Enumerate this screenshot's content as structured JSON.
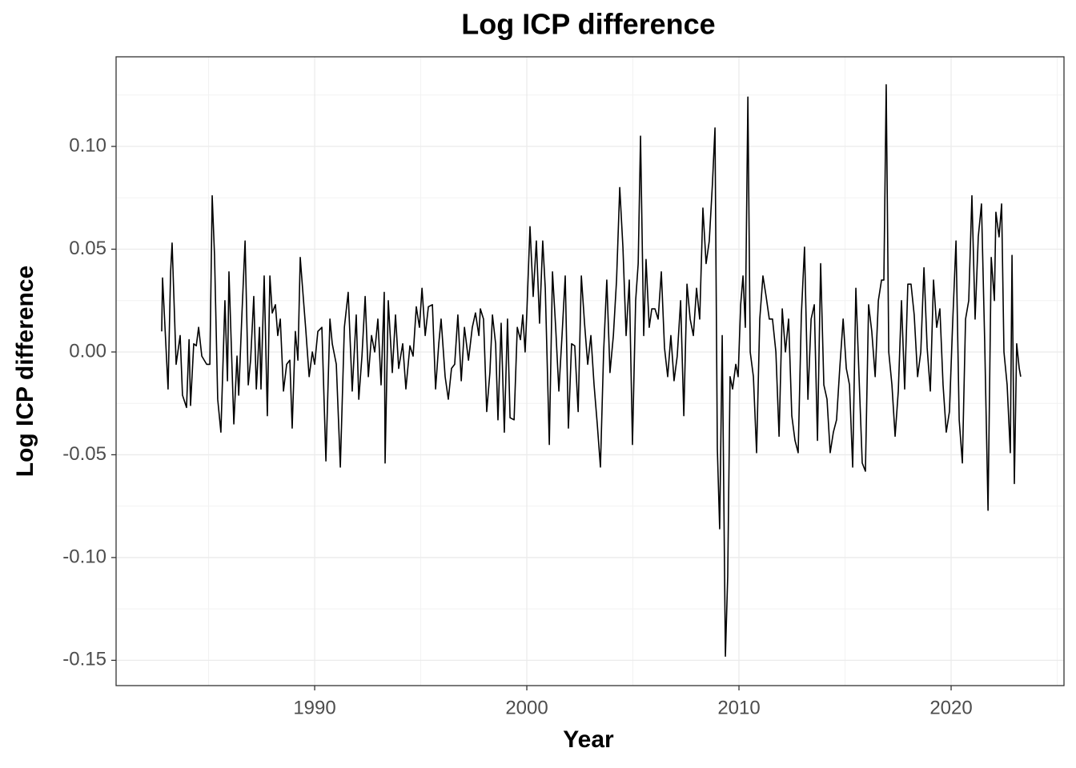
{
  "chart_data": {
    "type": "line",
    "title": "Log ICP difference",
    "x_label": "Year",
    "y_label": "Log ICP difference",
    "xlim": [
      1980.64,
      2025.32
    ],
    "ylim": [
      -0.1623,
      0.1436
    ],
    "xticks": [
      1990,
      2000,
      2010,
      2020
    ],
    "yticks": [
      {
        "value": -0.15,
        "label": "-0.15"
      },
      {
        "value": -0.1,
        "label": "-0.10"
      },
      -0.05,
      {
        "value": 0,
        "label": "0.00"
      },
      0.05,
      {
        "value": 0.1,
        "label": "0.10"
      }
    ],
    "x_minor_ticks": [
      1985,
      1995,
      2005,
      2015,
      2025
    ],
    "y_minor_ticks": [
      -0.125,
      -0.075,
      -0.025,
      0.025,
      0.075,
      0.125
    ],
    "grid": true,
    "x": [
      1982.79,
      1982.83,
      1983.09,
      1983.21,
      1983.28,
      1983.47,
      1983.66,
      1983.77,
      1983.96,
      1984.08,
      1984.15,
      1984.3,
      1984.42,
      1984.53,
      1984.68,
      1984.91,
      1985.06,
      1985.17,
      1985.28,
      1985.43,
      1985.58,
      1985.77,
      1985.89,
      1985.96,
      1986.19,
      1986.34,
      1986.42,
      1986.57,
      1986.72,
      1986.87,
      1986.98,
      1987.13,
      1987.25,
      1987.4,
      1987.47,
      1987.62,
      1987.77,
      1987.89,
      1988.0,
      1988.15,
      1988.26,
      1988.38,
      1988.53,
      1988.68,
      1988.83,
      1988.94,
      1989.09,
      1989.21,
      1989.32,
      1989.43,
      1989.58,
      1989.74,
      1989.89,
      1990.0,
      1990.15,
      1990.34,
      1990.53,
      1990.72,
      1990.83,
      1991.02,
      1991.21,
      1991.4,
      1991.58,
      1991.77,
      1991.96,
      1992.08,
      1992.23,
      1992.38,
      1992.53,
      1992.68,
      1992.83,
      1992.98,
      1993.13,
      1993.28,
      1993.32,
      1993.47,
      1993.66,
      1993.81,
      1993.96,
      1994.15,
      1994.3,
      1994.49,
      1994.64,
      1994.79,
      1994.94,
      1995.06,
      1995.21,
      1995.36,
      1995.55,
      1995.7,
      1995.85,
      1995.96,
      1996.15,
      1996.3,
      1996.45,
      1996.6,
      1996.75,
      1996.91,
      1997.06,
      1997.25,
      1997.43,
      1997.58,
      1997.74,
      1997.81,
      1997.96,
      1998.11,
      1998.26,
      1998.38,
      1998.53,
      1998.64,
      1998.79,
      1998.94,
      1999.09,
      1999.21,
      1999.4,
      1999.55,
      1999.7,
      1999.81,
      1999.92,
      2000.0,
      2000.15,
      2000.3,
      2000.45,
      2000.6,
      2000.75,
      2000.87,
      2001.06,
      2001.21,
      2001.36,
      2001.51,
      2001.66,
      2001.81,
      2001.96,
      2002.11,
      2002.26,
      2002.42,
      2002.57,
      2002.72,
      2002.87,
      2003.02,
      2003.17,
      2003.32,
      2003.47,
      2003.62,
      2003.77,
      2003.92,
      2004.08,
      2004.23,
      2004.38,
      2004.53,
      2004.68,
      2004.83,
      2004.98,
      2005.13,
      2005.25,
      2005.36,
      2005.51,
      2005.62,
      2005.77,
      2005.89,
      2006.04,
      2006.19,
      2006.34,
      2006.49,
      2006.64,
      2006.79,
      2006.94,
      2007.09,
      2007.25,
      2007.4,
      2007.55,
      2007.7,
      2007.85,
      2008.0,
      2008.15,
      2008.3,
      2008.45,
      2008.6,
      2008.75,
      2008.87,
      2008.98,
      2009.09,
      2009.21,
      2009.36,
      2009.47,
      2009.58,
      2009.7,
      2009.85,
      2009.96,
      2010.08,
      2010.19,
      2010.3,
      2010.42,
      2010.53,
      2010.68,
      2010.83,
      2010.98,
      2011.13,
      2011.28,
      2011.43,
      2011.58,
      2011.74,
      2011.89,
      2012.04,
      2012.19,
      2012.34,
      2012.49,
      2012.64,
      2012.79,
      2012.94,
      2013.09,
      2013.25,
      2013.4,
      2013.55,
      2013.7,
      2013.85,
      2014.0,
      2014.15,
      2014.3,
      2014.45,
      2014.6,
      2014.75,
      2014.91,
      2015.06,
      2015.21,
      2015.36,
      2015.51,
      2015.66,
      2015.81,
      2015.96,
      2016.11,
      2016.26,
      2016.42,
      2016.57,
      2016.72,
      2016.83,
      2016.94,
      2017.06,
      2017.21,
      2017.36,
      2017.51,
      2017.66,
      2017.81,
      2017.96,
      2018.11,
      2018.26,
      2018.42,
      2018.57,
      2018.72,
      2018.87,
      2019.02,
      2019.17,
      2019.32,
      2019.47,
      2019.62,
      2019.77,
      2019.92,
      2020.08,
      2020.23,
      2020.38,
      2020.53,
      2020.68,
      2020.83,
      2020.98,
      2021.13,
      2021.28,
      2021.43,
      2021.58,
      2021.74,
      2021.89,
      2022.04,
      2022.11,
      2022.26,
      2022.38,
      2022.49,
      2022.64,
      2022.79,
      2022.87,
      2022.98,
      2023.09,
      2023.21,
      2023.28
    ],
    "series": [
      {
        "color": "#000000",
        "values": [
          0.01,
          0.036,
          -0.018,
          0.039,
          0.053,
          -0.006,
          0.008,
          -0.021,
          -0.027,
          0.006,
          -0.026,
          0.004,
          0.003,
          0.012,
          -0.002,
          -0.006,
          -0.006,
          0.076,
          0.047,
          -0.023,
          -0.039,
          0.025,
          -0.014,
          0.039,
          -0.035,
          -0.002,
          -0.021,
          0.018,
          0.054,
          -0.016,
          -0.004,
          0.027,
          -0.018,
          0.012,
          -0.018,
          0.037,
          -0.031,
          0.037,
          0.019,
          0.023,
          0.008,
          0.016,
          -0.019,
          -0.006,
          -0.004,
          -0.037,
          0.01,
          -0.004,
          0.046,
          0.031,
          0.011,
          -0.012,
          0,
          -0.006,
          0.01,
          0.012,
          -0.053,
          0.016,
          0.004,
          -0.006,
          -0.056,
          0.012,
          0.029,
          -0.019,
          0.018,
          -0.023,
          -0.002,
          0.027,
          -0.012,
          0.008,
          0,
          0.016,
          -0.016,
          0.029,
          -0.054,
          0.025,
          -0.01,
          0.018,
          -0.008,
          0.004,
          -0.018,
          0.003,
          -0.002,
          0.022,
          0.012,
          0.031,
          0.008,
          0.022,
          0.023,
          -0.018,
          0.004,
          0.016,
          -0.012,
          -0.023,
          -0.008,
          -0.006,
          0.018,
          -0.014,
          0.012,
          -0.004,
          0.012,
          0.019,
          0.008,
          0.021,
          0.016,
          -0.029,
          -0.01,
          0.018,
          0.004,
          -0.033,
          0.014,
          -0.039,
          0.016,
          -0.032,
          -0.033,
          0.012,
          0.006,
          0.018,
          0,
          0.019,
          0.061,
          0.027,
          0.054,
          0.014,
          0.054,
          0.031,
          -0.045,
          0.039,
          0.012,
          -0.019,
          0.008,
          0.037,
          -0.037,
          0.004,
          0.003,
          -0.029,
          0.037,
          0.014,
          -0.006,
          0.008,
          -0.016,
          -0.035,
          -0.056,
          0,
          0.035,
          -0.01,
          0.008,
          0.035,
          0.08,
          0.051,
          0.008,
          0.035,
          -0.045,
          0.025,
          0.043,
          0.105,
          0.008,
          0.045,
          0.012,
          0.021,
          0.021,
          0.016,
          0.039,
          0.002,
          -0.012,
          0.008,
          -0.014,
          -0.002,
          0.025,
          -0.031,
          0.033,
          0.016,
          0.008,
          0.031,
          0.016,
          0.07,
          0.043,
          0.054,
          0.082,
          0.109,
          -0.047,
          -0.086,
          0.008,
          -0.148,
          -0.109,
          -0.012,
          -0.018,
          -0.006,
          -0.012,
          0.023,
          0.037,
          0.012,
          0.124,
          0,
          -0.012,
          -0.049,
          0.016,
          0.037,
          0.027,
          0.016,
          0.016,
          0,
          -0.041,
          0.021,
          0,
          0.016,
          -0.031,
          -0.043,
          -0.049,
          0.018,
          0.051,
          -0.023,
          0.016,
          0.023,
          -0.043,
          0.043,
          -0.016,
          -0.023,
          -0.049,
          -0.039,
          -0.033,
          -0.008,
          0.016,
          -0.008,
          -0.016,
          -0.056,
          0.031,
          -0.012,
          -0.054,
          -0.058,
          0.023,
          0.01,
          -0.012,
          0.025,
          0.035,
          0.035,
          0.13,
          0,
          -0.016,
          -0.041,
          -0.019,
          0.025,
          -0.018,
          0.033,
          0.033,
          0.018,
          -0.012,
          0,
          0.041,
          0.002,
          -0.019,
          0.035,
          0.012,
          0.021,
          -0.016,
          -0.039,
          -0.029,
          0.016,
          0.054,
          -0.033,
          -0.054,
          0.016,
          0.025,
          0.076,
          0.016,
          0.056,
          0.072,
          0.006,
          -0.077,
          0.046,
          0.025,
          0.068,
          0.056,
          0.072,
          0,
          -0.016,
          -0.049,
          0.047,
          -0.064,
          0.004,
          -0.008,
          -0.012
        ]
      }
    ]
  }
}
